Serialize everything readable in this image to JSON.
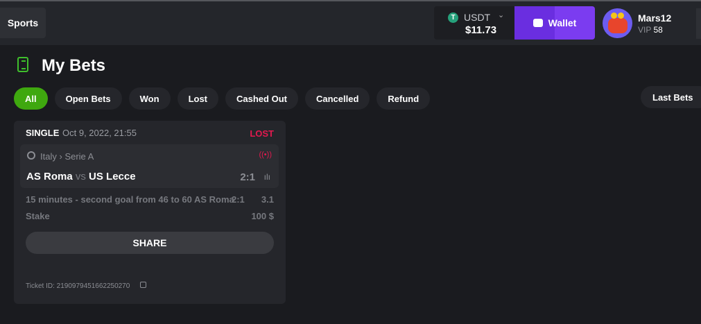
{
  "header": {
    "sports_label": "Sports",
    "currency": "USDT",
    "balance": "$11.73",
    "wallet_label": "Wallet",
    "username": "Mars12",
    "vip_label": "VIP",
    "vip_level": "58"
  },
  "page": {
    "title": "My Bets"
  },
  "tabs": [
    {
      "label": "All",
      "active": true
    },
    {
      "label": "Open Bets"
    },
    {
      "label": "Won"
    },
    {
      "label": "Lost"
    },
    {
      "label": "Cashed Out"
    },
    {
      "label": "Cancelled"
    },
    {
      "label": "Refund"
    }
  ],
  "last_bets_label": "Last Bets",
  "bet": {
    "type": "SINGLE",
    "date": "Oct 9, 2022, 21:55",
    "status": "LOST",
    "country": "Italy",
    "separator": "›",
    "league": "Serie A",
    "home": "AS Roma",
    "vs": "vs",
    "away": "US Lecce",
    "score": "2:1",
    "market": "15 minutes - second goal from 46 to 60 AS Roma",
    "market_score": "2:1",
    "odds": "3.1",
    "stake_label": "Stake",
    "stake": "100 $",
    "share_label": "SHARE",
    "ticket_label": "Ticket ID:",
    "ticket_id": "2190979451662250270"
  },
  "colors": {
    "accent": "#3fa80f",
    "wallet": "#7b3cf0",
    "lost": "#e3194f"
  }
}
